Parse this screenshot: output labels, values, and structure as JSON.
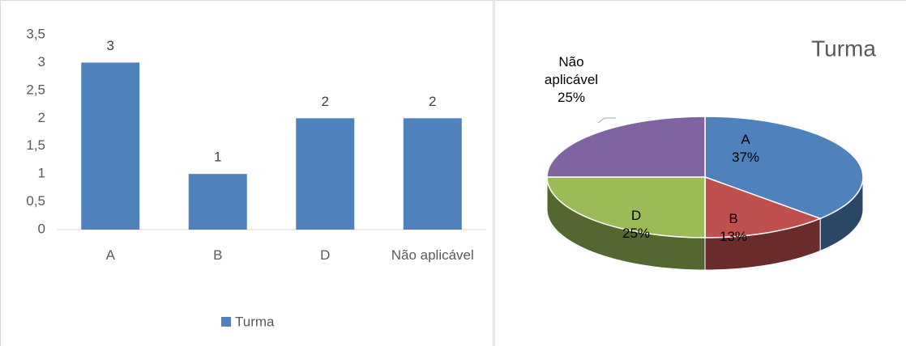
{
  "chart_data": [
    {
      "type": "bar",
      "categories": [
        "A",
        "B",
        "D",
        "Não aplicável"
      ],
      "values": [
        3,
        1,
        2,
        2
      ],
      "series_name": "Turma",
      "color": "#4f81bd",
      "ylim": [
        0,
        3.5
      ],
      "yticks": [
        0,
        {
          "value": 0.5,
          "label": "0,5"
        },
        1,
        {
          "value": 1.5,
          "label": "1,5"
        },
        2,
        {
          "value": 2.5,
          "label": "2,5"
        },
        3,
        {
          "value": 3.5,
          "label": "3,5"
        }
      ],
      "legend": "bottom"
    },
    {
      "type": "pie",
      "title": "Turma",
      "categories": [
        "A",
        "B",
        "D",
        "Não aplicável"
      ],
      "values": [
        37,
        13,
        25,
        25
      ],
      "value_labels": [
        "37%",
        "13%",
        "25%",
        "25%"
      ],
      "colors": [
        "#4f81bd",
        "#c0504d",
        "#9bbb59",
        "#8064a2"
      ]
    }
  ]
}
